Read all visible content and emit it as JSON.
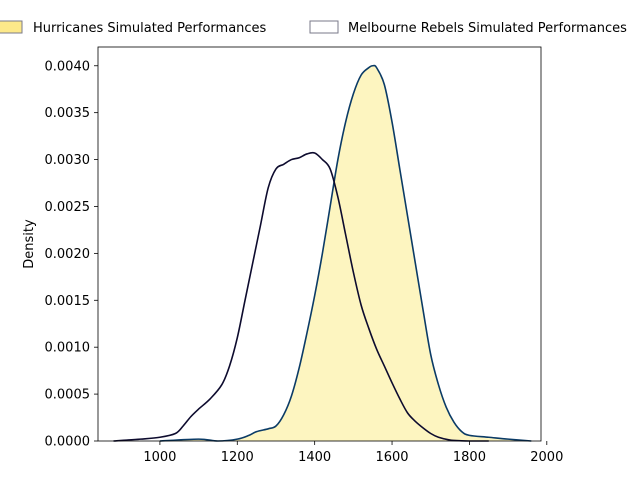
{
  "chart_data": {
    "type": "area",
    "title": "",
    "xlabel": "",
    "ylabel": "Density",
    "xlim": [
      840,
      1985
    ],
    "ylim": [
      0,
      0.0042
    ],
    "xticks": [
      1000,
      1200,
      1400,
      1600,
      1800,
      2000
    ],
    "xtick_labels": [
      "1000",
      "1200",
      "1400",
      "1600",
      "1800",
      "2000"
    ],
    "yticks": [
      0,
      0.0005,
      0.001,
      0.0015,
      0.002,
      0.0025,
      0.003,
      0.0035,
      0.004
    ],
    "ytick_labels": [
      "0.0000",
      "0.0005",
      "0.0010",
      "0.0015",
      "0.0020",
      "0.0025",
      "0.0030",
      "0.0035",
      "0.0040"
    ],
    "grid": false,
    "legend_position": "top",
    "series": [
      {
        "name": "Hurricanes Simulated Performances",
        "fill": "#fdf5c0",
        "legend_fill": "#fde98a",
        "line": "#0b3b66",
        "filled": true,
        "x": [
          1000,
          1100,
          1150,
          1200,
          1230,
          1250,
          1280,
          1300,
          1320,
          1340,
          1360,
          1380,
          1400,
          1420,
          1440,
          1460,
          1480,
          1500,
          1520,
          1540,
          1550,
          1560,
          1580,
          1600,
          1620,
          1640,
          1660,
          1680,
          1700,
          1720,
          1740,
          1760,
          1780,
          1800,
          1850,
          1900,
          1960
        ],
        "y": [
          0,
          2e-05,
          0.0,
          2e-05,
          6e-05,
          0.0001,
          0.00013,
          0.00016,
          0.00028,
          0.00048,
          0.00078,
          0.00115,
          0.00155,
          0.002,
          0.0025,
          0.003,
          0.0034,
          0.0037,
          0.0039,
          0.00398,
          0.004,
          0.00398,
          0.0038,
          0.0034,
          0.0029,
          0.0024,
          0.0019,
          0.0014,
          0.00092,
          0.0006,
          0.00036,
          0.0002,
          0.0001,
          6e-05,
          4e-05,
          2e-05,
          0
        ]
      },
      {
        "name": "Melbourne Rebels Simulated Performances",
        "fill": "#ffffff",
        "legend_fill": "#ffffff",
        "line": "#0d0b2e",
        "filled": false,
        "x": [
          880,
          950,
          1000,
          1040,
          1060,
          1080,
          1100,
          1130,
          1160,
          1180,
          1200,
          1220,
          1240,
          1260,
          1280,
          1300,
          1320,
          1340,
          1360,
          1380,
          1400,
          1420,
          1440,
          1460,
          1480,
          1500,
          1520,
          1540,
          1560,
          1580,
          1600,
          1620,
          1640,
          1660,
          1680,
          1700,
          1720,
          1750,
          1780,
          1800,
          1850
        ],
        "y": [
          0,
          2e-05,
          4e-05,
          8e-05,
          0.00016,
          0.00026,
          0.00034,
          0.00045,
          0.0006,
          0.0008,
          0.0011,
          0.0015,
          0.0019,
          0.0023,
          0.0027,
          0.0029,
          0.00295,
          0.003,
          0.00302,
          0.00306,
          0.00307,
          0.003,
          0.0029,
          0.0026,
          0.0022,
          0.0018,
          0.00145,
          0.0012,
          0.00098,
          0.0008,
          0.00062,
          0.00045,
          0.0003,
          0.00021,
          0.00014,
          8e-05,
          4e-05,
          1e-05,
          2e-06,
          0,
          0
        ]
      }
    ]
  }
}
